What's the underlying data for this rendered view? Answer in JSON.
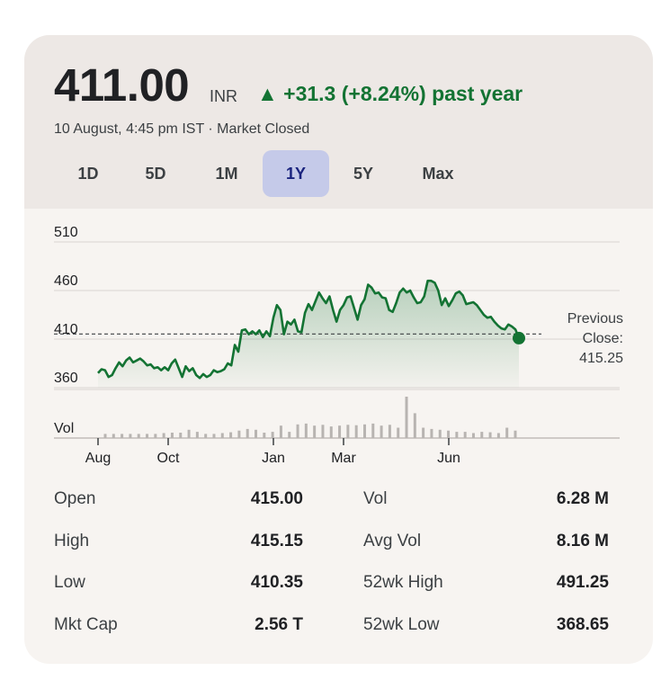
{
  "quote": {
    "price": "411.00",
    "currency": "INR",
    "change": "▲ +31.3 (+8.24%) past year",
    "as_of": "10 August, 4:45 pm IST · Market Closed",
    "up_color": "#137333"
  },
  "range_tabs": [
    {
      "label": "1D",
      "active": false
    },
    {
      "label": "5D",
      "active": false
    },
    {
      "label": "1M",
      "active": false
    },
    {
      "label": "1Y",
      "active": true
    },
    {
      "label": "5Y",
      "active": false
    },
    {
      "label": "Max",
      "active": false
    }
  ],
  "chart_data": {
    "type": "line",
    "y_ticks": [
      "510",
      "460",
      "410",
      "360"
    ],
    "ylim": [
      360,
      510
    ],
    "x_ticks": [
      {
        "label": "Aug",
        "t": 0
      },
      {
        "label": "Oct",
        "t": 2
      },
      {
        "label": "Jan",
        "t": 5
      },
      {
        "label": "Mar",
        "t": 7
      },
      {
        "label": "Jun",
        "t": 10
      }
    ],
    "xlim": [
      0,
      12
    ],
    "series": [
      {
        "points": [
          [
            0.0,
            375
          ],
          [
            0.1,
            379
          ],
          [
            0.2,
            378
          ],
          [
            0.3,
            371
          ],
          [
            0.4,
            373
          ],
          [
            0.5,
            380
          ],
          [
            0.6,
            386
          ],
          [
            0.7,
            382
          ],
          [
            0.8,
            388
          ],
          [
            0.9,
            391
          ],
          [
            1.0,
            386
          ],
          [
            1.1,
            388
          ],
          [
            1.2,
            390
          ],
          [
            1.3,
            387
          ],
          [
            1.4,
            383
          ],
          [
            1.5,
            384
          ],
          [
            1.6,
            380
          ],
          [
            1.7,
            381
          ],
          [
            1.8,
            378
          ],
          [
            1.9,
            381
          ],
          [
            2.0,
            378
          ],
          [
            2.1,
            385
          ],
          [
            2.2,
            389
          ],
          [
            2.3,
            380
          ],
          [
            2.4,
            371
          ],
          [
            2.5,
            382
          ],
          [
            2.6,
            377
          ],
          [
            2.7,
            380
          ],
          [
            2.8,
            373
          ],
          [
            2.9,
            370
          ],
          [
            3.0,
            374
          ],
          [
            3.1,
            371
          ],
          [
            3.2,
            373
          ],
          [
            3.3,
            378
          ],
          [
            3.4,
            376
          ],
          [
            3.5,
            377
          ],
          [
            3.6,
            379
          ],
          [
            3.7,
            385
          ],
          [
            3.8,
            383
          ],
          [
            3.9,
            404
          ],
          [
            4.0,
            397
          ],
          [
            4.1,
            419
          ],
          [
            4.2,
            420
          ],
          [
            4.3,
            415
          ],
          [
            4.4,
            418
          ],
          [
            4.5,
            415
          ],
          [
            4.6,
            419
          ],
          [
            4.7,
            412
          ],
          [
            4.8,
            418
          ],
          [
            4.9,
            413
          ],
          [
            5.0,
            432
          ],
          [
            5.1,
            445
          ],
          [
            5.2,
            440
          ],
          [
            5.3,
            415
          ],
          [
            5.4,
            428
          ],
          [
            5.5,
            425
          ],
          [
            5.6,
            430
          ],
          [
            5.7,
            418
          ],
          [
            5.8,
            417
          ],
          [
            5.9,
            437
          ],
          [
            6.0,
            446
          ],
          [
            6.1,
            440
          ],
          [
            6.2,
            449
          ],
          [
            6.3,
            458
          ],
          [
            6.4,
            452
          ],
          [
            6.5,
            447
          ],
          [
            6.6,
            454
          ],
          [
            6.7,
            440
          ],
          [
            6.8,
            428
          ],
          [
            6.9,
            440
          ],
          [
            7.0,
            445
          ],
          [
            7.1,
            453
          ],
          [
            7.2,
            454
          ],
          [
            7.3,
            442
          ],
          [
            7.4,
            430
          ],
          [
            7.5,
            445
          ],
          [
            7.6,
            451
          ],
          [
            7.7,
            466
          ],
          [
            7.8,
            463
          ],
          [
            7.9,
            457
          ],
          [
            8.0,
            458
          ],
          [
            8.1,
            453
          ],
          [
            8.2,
            452
          ],
          [
            8.3,
            440
          ],
          [
            8.4,
            438
          ],
          [
            8.5,
            447
          ],
          [
            8.6,
            458
          ],
          [
            8.7,
            462
          ],
          [
            8.8,
            458
          ],
          [
            8.9,
            460
          ],
          [
            9.0,
            453
          ],
          [
            9.1,
            447
          ],
          [
            9.2,
            448
          ],
          [
            9.3,
            454
          ],
          [
            9.4,
            470
          ],
          [
            9.5,
            470
          ],
          [
            9.6,
            468
          ],
          [
            9.7,
            460
          ],
          [
            9.8,
            445
          ],
          [
            9.9,
            452
          ],
          [
            10.0,
            444
          ],
          [
            10.1,
            450
          ],
          [
            10.2,
            457
          ],
          [
            10.3,
            459
          ],
          [
            10.4,
            455
          ],
          [
            10.5,
            446
          ],
          [
            10.6,
            447
          ],
          [
            10.7,
            448
          ],
          [
            10.8,
            445
          ],
          [
            10.9,
            440
          ],
          [
            11.0,
            435
          ],
          [
            11.1,
            432
          ],
          [
            11.2,
            433
          ],
          [
            11.3,
            428
          ],
          [
            11.4,
            424
          ],
          [
            11.5,
            421
          ],
          [
            11.6,
            420
          ],
          [
            11.7,
            425
          ],
          [
            11.8,
            423
          ],
          [
            11.9,
            420
          ],
          [
            12.0,
            411
          ]
        ]
      }
    ],
    "previous_close": 415.25,
    "previous_close_label": "Previous Close: 415.25",
    "volume_label": "Vol",
    "volume_peak": 1.0,
    "volume": [
      0.1,
      0.1,
      0.1,
      0.1,
      0.1,
      0.1,
      0.1,
      0.12,
      0.13,
      0.13,
      0.2,
      0.15,
      0.1,
      0.1,
      0.12,
      0.14,
      0.18,
      0.22,
      0.2,
      0.13,
      0.15,
      0.3,
      0.15,
      0.33,
      0.35,
      0.3,
      0.32,
      0.28,
      0.3,
      0.32,
      0.31,
      0.33,
      0.35,
      0.3,
      0.32,
      0.25,
      1.0,
      0.6,
      0.25,
      0.22,
      0.2,
      0.18,
      0.15,
      0.15,
      0.12,
      0.15,
      0.14,
      0.12,
      0.25,
      0.18
    ],
    "line_color": "#137333",
    "grid": true
  },
  "stats": {
    "left": [
      {
        "label": "Open",
        "value": "415.00"
      },
      {
        "label": "High",
        "value": "415.15"
      },
      {
        "label": "Low",
        "value": "410.35"
      },
      {
        "label": "Mkt Cap",
        "value": "2.56 T"
      }
    ],
    "right": [
      {
        "label": "Vol",
        "value": "6.28 M"
      },
      {
        "label": "Avg Vol",
        "value": "8.16 M"
      },
      {
        "label": "52wk High",
        "value": "491.25"
      },
      {
        "label": "52wk Low",
        "value": "368.65"
      }
    ]
  }
}
